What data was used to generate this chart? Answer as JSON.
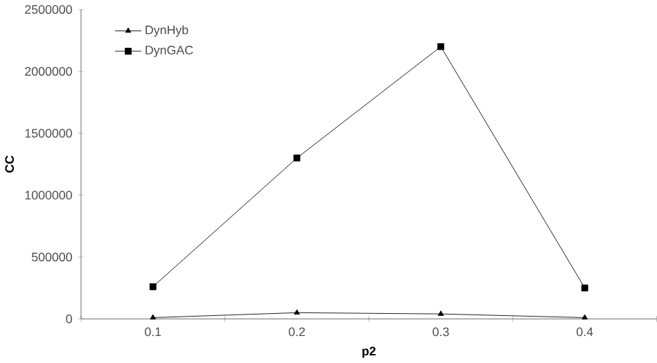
{
  "chart_data": {
    "type": "line",
    "xlabel": "p2",
    "ylabel": "CC",
    "categories": [
      "0.1",
      "0.2",
      "0.3",
      "0.4"
    ],
    "series": [
      {
        "name": "DynHyb",
        "color": "#000000",
        "marker": "triangle",
        "values": [
          10000,
          50000,
          40000,
          10000
        ]
      },
      {
        "name": "DynGAC",
        "color": "#000000",
        "marker": "square",
        "values": [
          260000,
          1300000,
          2200000,
          250000
        ]
      }
    ],
    "ylim": [
      0,
      2500000
    ],
    "yticks": [
      0,
      500000,
      1000000,
      1500000,
      2000000,
      2500000
    ],
    "grid": false,
    "legend": "top left",
    "line_style": "solid"
  }
}
